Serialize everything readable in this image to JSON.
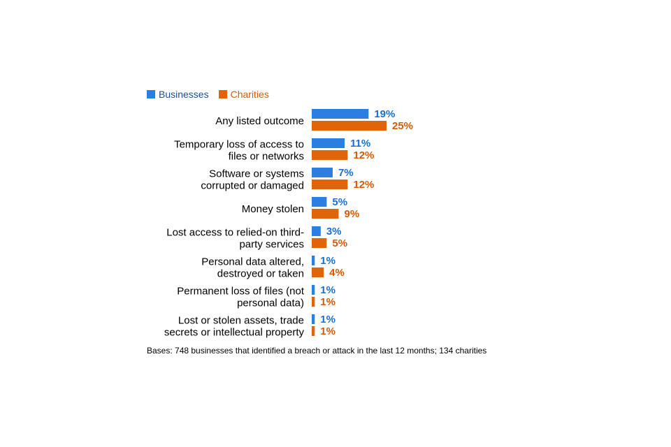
{
  "chart_data": {
    "type": "bar",
    "orientation": "horizontal",
    "categories": [
      [
        "Any listed outcome"
      ],
      [
        "Temporary loss of access to",
        "files or networks"
      ],
      [
        "Software or systems",
        "corrupted or damaged"
      ],
      [
        "Money stolen"
      ],
      [
        "Lost access to relied-on third-",
        "party services"
      ],
      [
        "Personal data altered,",
        "destroyed or taken"
      ],
      [
        "Permanent loss of files (not",
        "personal data)"
      ],
      [
        "Lost or stolen assets, trade",
        "secrets or intellectual property"
      ]
    ],
    "series": [
      {
        "name": "Businesses",
        "color": "#2a7fe0",
        "label_color": "#1a6fd6",
        "values": [
          19,
          11,
          7,
          5,
          3,
          1,
          1,
          1
        ]
      },
      {
        "name": "Charities",
        "color": "#e0650a",
        "label_color": "#d45a08",
        "values": [
          25,
          12,
          12,
          9,
          5,
          4,
          1,
          1
        ]
      }
    ],
    "value_suffix": "%",
    "legend_position": "top-left",
    "grid": false,
    "xlim": [
      0,
      25
    ],
    "footnote": "Bases: 748 businesses that identified a breach or attack in the last 12 months; 134 charities"
  }
}
